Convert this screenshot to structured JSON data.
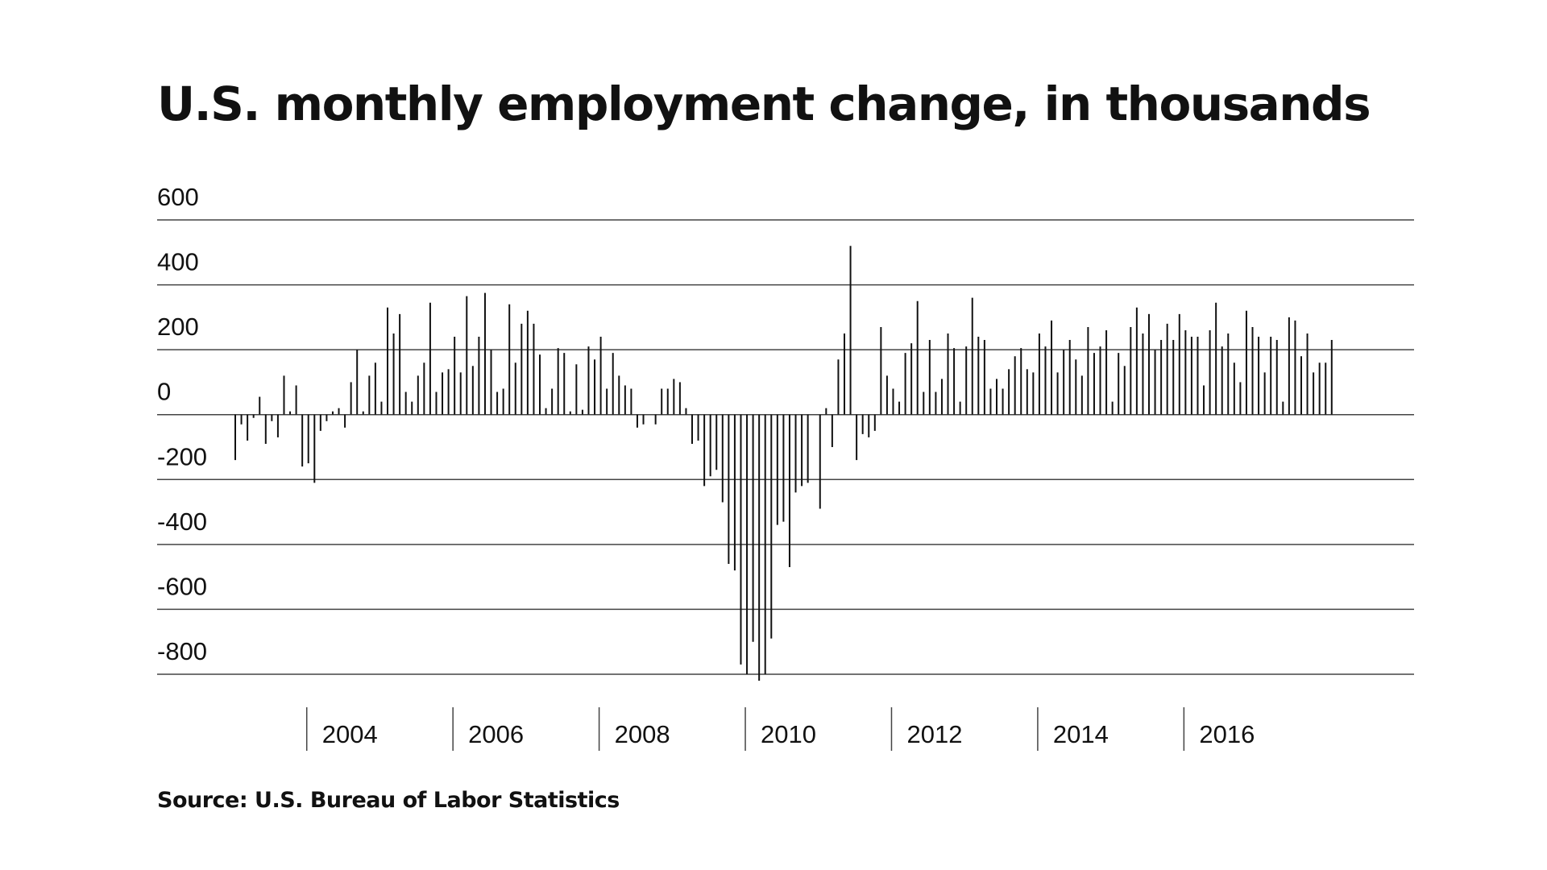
{
  "title": "U.S. monthly employment change, in thousands",
  "source": "Source: U.S. Bureau of Labor Statistics",
  "colors": {
    "bar": "#111111",
    "grid": "#444444",
    "background": "#ffffff"
  },
  "chart_data": {
    "type": "bar",
    "title": "U.S. monthly employment change, in thousands",
    "xlabel": "",
    "ylabel": "",
    "grid": true,
    "ylim": [
      -800,
      600
    ],
    "y_ticks": [
      600,
      400,
      200,
      0,
      -200,
      -400,
      -600,
      -800
    ],
    "y_tick_labels": [
      "600",
      "400",
      "200",
      "0",
      "-200",
      "-400",
      "-600",
      "-800"
    ],
    "x_ticks": [
      2004,
      2006,
      2008,
      2010,
      2012,
      2014,
      2016
    ],
    "x_tick_labels": [
      "2004",
      "2006",
      "2008",
      "2010",
      "2012",
      "2014",
      "2016"
    ],
    "start": "2003-01",
    "frequency": "monthly",
    "values": [
      -140,
      -30,
      -80,
      -10,
      55,
      -90,
      -20,
      -70,
      120,
      10,
      90,
      -160,
      -150,
      -210,
      -50,
      -20,
      10,
      20,
      -40,
      100,
      200,
      10,
      120,
      160,
      40,
      330,
      250,
      310,
      70,
      40,
      120,
      160,
      345,
      70,
      130,
      140,
      240,
      130,
      365,
      150,
      240,
      375,
      200,
      70,
      80,
      340,
      160,
      280,
      320,
      280,
      185,
      20,
      80,
      205,
      190,
      10,
      155,
      15,
      210,
      170,
      240,
      80,
      190,
      120,
      90,
      80,
      -40,
      -30,
      0,
      -30,
      80,
      80,
      110,
      100,
      20,
      -90,
      -80,
      -220,
      -190,
      -170,
      -270,
      -460,
      -480,
      -770,
      -800,
      -700,
      -820,
      -800,
      -690,
      -340,
      -330,
      -470,
      -240,
      -220,
      -210,
      0,
      -290,
      20,
      -100,
      170,
      250,
      520,
      -140,
      -60,
      -70,
      -50,
      270,
      120,
      80,
      40,
      190,
      220,
      350,
      70,
      230,
      70,
      110,
      250,
      205,
      40,
      210,
      360,
      240,
      230,
      80,
      110,
      80,
      140,
      180,
      205,
      140,
      130,
      250,
      210,
      290,
      130,
      200,
      230,
      170,
      120,
      270,
      190,
      210,
      260,
      40,
      190,
      150,
      270,
      330,
      250,
      310,
      200,
      230,
      280,
      230,
      310,
      260,
      240,
      240,
      90,
      260,
      345,
      210,
      250,
      160,
      100,
      320,
      270,
      240,
      130,
      240,
      230,
      40,
      300,
      290,
      180,
      250,
      130,
      160,
      160,
      230
    ]
  }
}
